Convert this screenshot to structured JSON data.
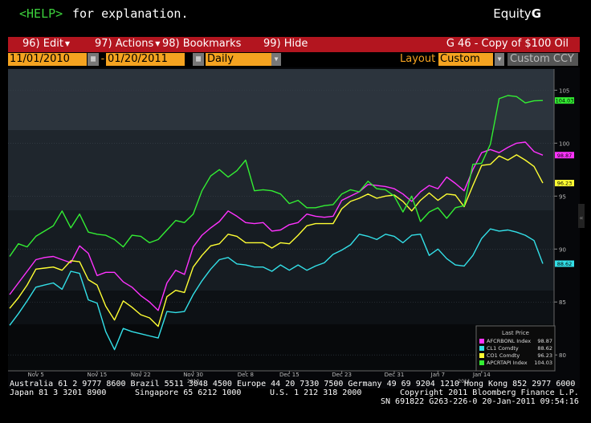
{
  "header": {
    "help_key": "<HELP>",
    "help_text": "for explanation.",
    "equity_prefix": "Equity",
    "equity_key": "G"
  },
  "menubar": {
    "items": [
      {
        "label": "96) Edit"
      },
      {
        "label": "97) Actions"
      },
      {
        "label": "98) Bookmarks"
      },
      {
        "label": "99) Hide"
      }
    ],
    "title": "G 46 - Copy of $100 Oil"
  },
  "toolbar": {
    "start_date": "11/01/2010",
    "end_date": "01/20/2011",
    "period": "Daily",
    "layout_label": "Layout",
    "layout_value": "Custom",
    "currency": "Custom CCY"
  },
  "colors": {
    "magenta": "#ff33ff",
    "cyan": "#33e0e8",
    "yellow": "#ffff33",
    "green": "#33ee33",
    "menubar": "#b3151f",
    "field": "#f5a320"
  },
  "chart_data": {
    "type": "line",
    "x_ticks": [
      "Nov 5",
      "Nov 15",
      "Nov 22",
      "Nov 30",
      "Dec 8",
      "Dec 15",
      "Dec 23",
      "Dec 31",
      "Jan 7",
      "Jan 14"
    ],
    "x_year_labels": [
      "2010",
      "2011"
    ],
    "y_ticks": [
      "105",
      "100",
      "95",
      "90",
      "85",
      "80"
    ],
    "ylim": [
      78.5,
      107
    ],
    "legend_title": "Last Price",
    "series": [
      {
        "name": "AFCRBONL Index",
        "last": "98.87",
        "color": "#ff33ff",
        "values": [
          85.7,
          86.8,
          87.9,
          89.0,
          89.2,
          89.3,
          89.0,
          88.7,
          90.3,
          89.6,
          87.5,
          87.8,
          87.8,
          86.9,
          86.4,
          85.6,
          85.0,
          84.2,
          86.8,
          88.0,
          87.6,
          90.2,
          91.3,
          92.0,
          92.6,
          93.6,
          93.1,
          92.5,
          92.4,
          92.5,
          91.7,
          91.8,
          92.3,
          92.5,
          93.3,
          93.1,
          93.0,
          93.1,
          94.6,
          95.0,
          95.4,
          96.1,
          96.0,
          95.9,
          95.7,
          95.2,
          94.5,
          95.4,
          96.0,
          95.7,
          96.8,
          96.2,
          95.5,
          97.5,
          99.1,
          99.4,
          99.1,
          99.6,
          100.0,
          100.1,
          99.2,
          98.87
        ]
      },
      {
        "name": "CL1 Comdty",
        "last": "88.62",
        "color": "#33e0e8",
        "values": [
          82.8,
          83.9,
          85.1,
          86.4,
          86.6,
          86.8,
          86.2,
          87.9,
          87.7,
          85.2,
          84.9,
          82.2,
          80.5,
          82.5,
          82.2,
          82.0,
          81.8,
          81.6,
          84.1,
          84.0,
          84.1,
          85.7,
          87.0,
          88.1,
          89.0,
          89.2,
          88.6,
          88.5,
          88.3,
          88.3,
          87.9,
          88.5,
          88.0,
          88.5,
          88.0,
          88.4,
          88.7,
          89.5,
          89.9,
          90.4,
          91.4,
          91.2,
          90.9,
          91.4,
          91.2,
          90.6,
          91.3,
          91.4,
          89.4,
          90.0,
          89.1,
          88.5,
          88.4,
          89.4,
          91.0,
          91.9,
          91.7,
          91.8,
          91.6,
          91.3,
          90.8,
          88.62
        ]
      },
      {
        "name": "CO1 Comdty",
        "last": "96.23",
        "color": "#ffff33",
        "values": [
          84.4,
          85.4,
          86.6,
          88.1,
          88.2,
          88.3,
          88.0,
          88.9,
          88.8,
          87.1,
          86.6,
          84.6,
          83.3,
          85.1,
          84.5,
          83.8,
          83.5,
          82.7,
          85.5,
          86.1,
          85.9,
          88.3,
          89.4,
          90.3,
          90.5,
          91.4,
          91.2,
          90.6,
          90.6,
          90.6,
          90.1,
          90.6,
          90.5,
          91.3,
          92.2,
          92.4,
          92.4,
          92.4,
          93.8,
          94.5,
          94.8,
          95.2,
          94.8,
          95.0,
          95.1,
          94.5,
          93.6,
          94.6,
          95.3,
          94.6,
          95.2,
          95.1,
          94.0,
          96.0,
          97.9,
          98.0,
          98.8,
          98.4,
          98.9,
          98.4,
          97.8,
          96.23
        ]
      },
      {
        "name": "APCRTAPI Index",
        "last": "104.03",
        "color": "#33ee33",
        "values": [
          89.3,
          90.5,
          90.2,
          91.2,
          91.7,
          92.2,
          93.6,
          92.0,
          93.3,
          91.6,
          91.4,
          91.3,
          90.9,
          90.2,
          91.3,
          91.2,
          90.6,
          90.9,
          91.8,
          92.7,
          92.5,
          93.3,
          95.5,
          96.9,
          97.5,
          96.8,
          97.4,
          98.4,
          95.5,
          95.6,
          95.5,
          95.2,
          94.3,
          94.6,
          93.9,
          93.9,
          94.1,
          94.2,
          95.2,
          95.6,
          95.4,
          96.4,
          95.7,
          95.6,
          95.0,
          93.5,
          95.0,
          92.6,
          93.5,
          93.9,
          92.9,
          93.9,
          94.1,
          98.0,
          98.1,
          99.9,
          104.2,
          104.5,
          104.4,
          103.8,
          104.0,
          104.03
        ]
      }
    ]
  },
  "footer": {
    "line1_left": "Australia 61 2 9777 8600 Brazil 5511 3048 4500 Europe 44 20 7330 7500 Germany 49 69 9204 1210 Hong Kong 852 2977 6000",
    "line2_left": "Japan 81 3 3201 8900",
    "line2_mid": "Singapore 65 6212 1000",
    "line2_mid2": "U.S. 1 212 318 2000",
    "line2_right": "Copyright 2011 Bloomberg Finance L.P.",
    "line3_right": "SN 691822 G263-226-0 20-Jan-2011 09:54:16"
  }
}
